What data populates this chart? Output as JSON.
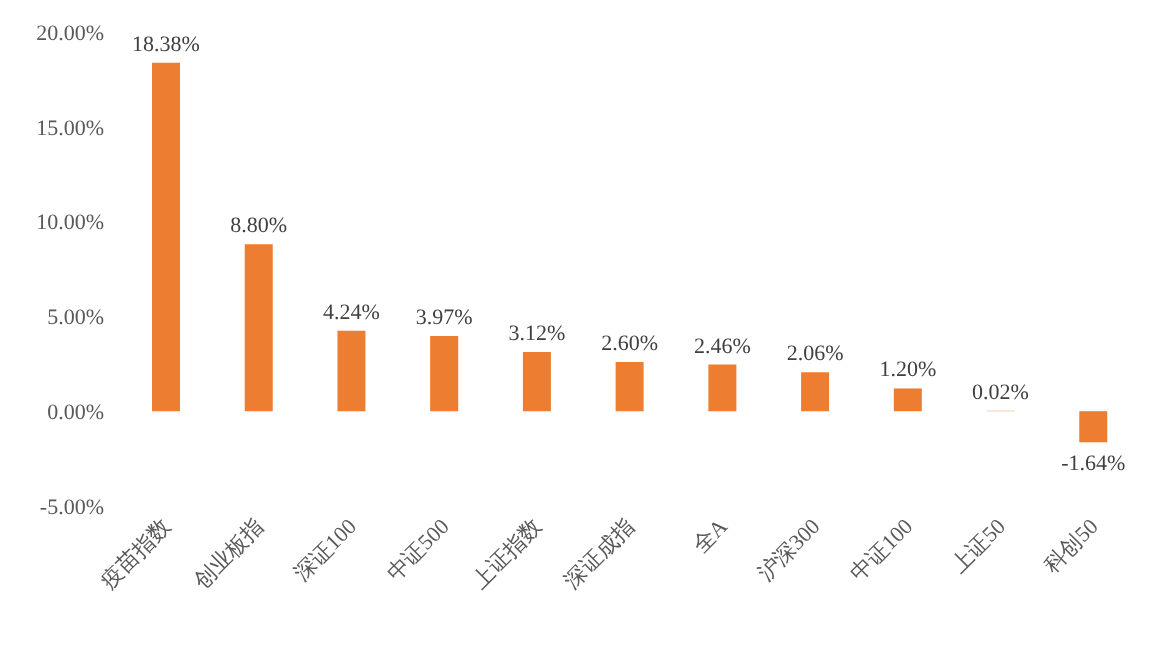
{
  "chart_data": {
    "type": "bar",
    "categories": [
      "疫苗指数",
      "创业板指",
      "深证100",
      "中证500",
      "上证指数",
      "深证成指",
      "全A",
      "沪深300",
      "中证100",
      "上证50",
      "科创50"
    ],
    "values": [
      18.38,
      8.8,
      4.24,
      3.97,
      3.12,
      2.6,
      2.46,
      2.06,
      1.2,
      0.02,
      -1.64
    ],
    "value_labels": [
      "18.38%",
      "8.80%",
      "4.24%",
      "3.97%",
      "3.12%",
      "2.60%",
      "2.46%",
      "2.06%",
      "1.20%",
      "0.02%",
      "-1.64%"
    ],
    "color": "#ed7d31",
    "ylim": [
      -5,
      20
    ],
    "yticks": [
      {
        "value": -5,
        "label": "-5.00%"
      },
      {
        "value": 0,
        "label": "0.00%"
      },
      {
        "value": 5,
        "label": "5.00%"
      },
      {
        "value": 10,
        "label": "10.00%"
      },
      {
        "value": 15,
        "label": "15.00%"
      },
      {
        "value": 20,
        "label": "20.00%"
      }
    ],
    "grid": false,
    "legend": false
  }
}
